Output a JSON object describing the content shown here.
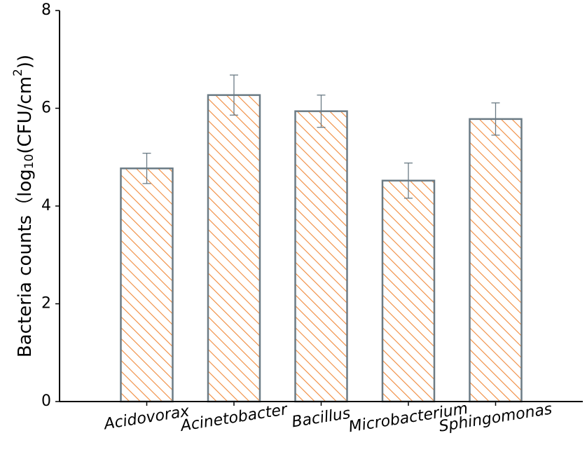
{
  "chart_data": {
    "type": "bar",
    "ylabel_parts": [
      "Bacteria counts（log",
      "10",
      "(CFU/cm",
      "2",
      "))"
    ],
    "categories": [
      "Acidovorax",
      "Acinetobacter",
      "Bacillus",
      "Microbacterium",
      "Sphingomonas"
    ],
    "values": [
      4.77,
      6.27,
      5.94,
      4.52,
      5.78
    ],
    "errors": [
      0.31,
      0.41,
      0.33,
      0.36,
      0.33
    ],
    "color": "#f08a3c",
    "edgecolor": "#6b7b85",
    "ylim": [
      0,
      8
    ],
    "yticks": [
      0,
      2,
      4,
      6,
      8
    ],
    "grid": false
  }
}
